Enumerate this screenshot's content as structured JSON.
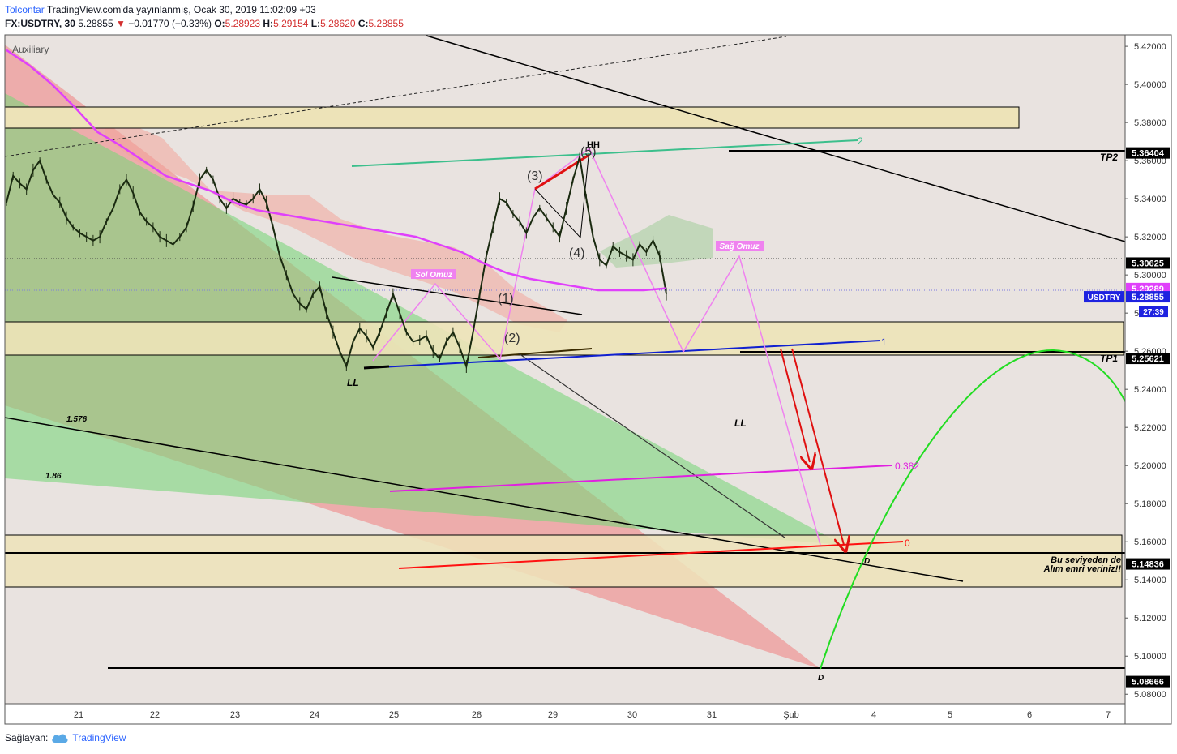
{
  "header": {
    "author": "Tolcontar",
    "published": "TradingView.com'da yayınlanmış, Ocak 30, 2019 11:02:09 +03",
    "symbol": "FX:USDTRY, 30",
    "last": "5.28855",
    "change_arrow": "▼",
    "change": "−0.01770 (−0.33%)",
    "o_label": "O:",
    "o": "5.28923",
    "h_label": "H:",
    "h": "5.29154",
    "l_label": "L:",
    "l": "5.28620",
    "c_label": "C:",
    "c": "5.28855"
  },
  "footer": {
    "label": "Sağlayan:",
    "brand": "TradingView",
    "brand_icon": "tradingview-cloud-icon"
  },
  "auxiliary_label": "Auxiliary",
  "colors": {
    "background": "#e9e3e0",
    "candles": "#1a2a10",
    "ma_line": "#e040fb",
    "red_zone": "#f08080",
    "green_zone": "#7cd67c",
    "box_fill": "#ede3b8",
    "price_tag": "#000000",
    "current_tag": "#1e22e0"
  },
  "chart_data": {
    "type": "line",
    "title": "",
    "xlabel": "",
    "ylabel": "",
    "x_ticks": [
      "21",
      "22",
      "23",
      "24",
      "25",
      "28",
      "29",
      "30",
      "31",
      "Şub",
      "4",
      "5",
      "6",
      "7"
    ],
    "y_ticks": [
      "5.42000",
      "5.40000",
      "5.38000",
      "5.36000",
      "5.34000",
      "5.32000",
      "5.30000",
      "5.28000",
      "5.26000",
      "5.24000",
      "5.22000",
      "5.20000",
      "5.18000",
      "5.16000",
      "5.14000",
      "5.12000",
      "5.10000",
      "5.08000"
    ],
    "ylim": [
      5.075,
      5.426
    ],
    "grid": false,
    "series": [
      {
        "type": "price",
        "values": [
          5.338,
          5.352,
          5.348,
          5.345,
          5.355,
          5.36,
          5.35,
          5.342,
          5.338,
          5.33,
          5.325,
          5.322,
          5.32,
          5.318,
          5.32,
          5.328,
          5.335,
          5.345,
          5.35,
          5.343,
          5.333,
          5.328,
          5.325,
          5.32,
          5.318,
          5.316,
          5.32,
          5.325,
          5.336,
          5.35,
          5.355,
          5.35,
          5.34,
          5.335,
          5.34,
          5.338,
          5.337,
          5.34,
          5.345,
          5.338,
          5.325,
          5.31,
          5.3,
          5.29,
          5.285,
          5.282,
          5.29,
          5.294,
          5.28,
          5.27,
          5.26,
          5.252,
          5.265,
          5.272,
          5.268,
          5.262,
          5.27,
          5.28,
          5.29,
          5.28,
          5.27,
          5.265,
          5.266,
          5.268,
          5.26,
          5.256,
          5.265,
          5.27,
          5.262,
          5.252,
          5.27,
          5.29,
          5.31,
          5.325,
          5.34,
          5.338,
          5.332,
          5.328,
          5.322,
          5.33,
          5.335,
          5.33,
          5.325,
          5.32,
          5.335,
          5.35,
          5.362,
          5.34,
          5.32,
          5.308,
          5.305,
          5.315,
          5.312,
          5.31,
          5.308,
          5.316,
          5.312,
          5.318,
          5.31,
          5.29
        ]
      },
      {
        "type": "ma",
        "values": [
          5.418,
          5.41,
          5.4,
          5.388,
          5.375,
          5.368,
          5.36,
          5.352,
          5.348,
          5.344,
          5.338,
          5.334,
          5.332,
          5.33,
          5.328,
          5.326,
          5.324,
          5.322,
          5.32,
          5.316,
          5.312,
          5.306,
          5.301,
          5.298,
          5.296,
          5.294,
          5.292,
          5.292,
          5.292,
          5.293
        ]
      }
    ],
    "price_labels": [
      {
        "text": "5.36404",
        "value": 5.36404,
        "style": "black"
      },
      {
        "text": "5.30625",
        "value": 5.30625,
        "style": "black"
      },
      {
        "text": "5.29289",
        "value": 5.29289,
        "style": "magenta"
      },
      {
        "text": "5.28855",
        "value": 5.28855,
        "style": "current"
      },
      {
        "text": "5.25621",
        "value": 5.25621,
        "style": "black"
      },
      {
        "text": "5.14836",
        "value": 5.14836,
        "style": "black"
      },
      {
        "text": "5.08666",
        "value": 5.08666,
        "style": "black"
      }
    ],
    "current_symbol": "USDTRY",
    "countdown": "27:39",
    "annotations": {
      "tp2": "TP2",
      "tp1": "TP1",
      "ll_left": "LL",
      "ll_right": "LL",
      "hh": "HH",
      "wave_1": "(1)",
      "wave_2": "(2)",
      "wave_3": "(3)",
      "wave_4": "(4)",
      "wave_5": "(5)",
      "sol_omuz": "Sol Omuz",
      "sag_omuz": "Sağ Omuz",
      "fib_1576": "1.576",
      "fib_186": "1.86",
      "fib_0382": "0.382",
      "fib_0": "0",
      "fib_1": "1",
      "fib_2": "2",
      "d_upper": "D",
      "d_lower": "D",
      "note_line1": "Bu seviyeden de",
      "note_line2": "Alım emri veriniz!!"
    }
  }
}
